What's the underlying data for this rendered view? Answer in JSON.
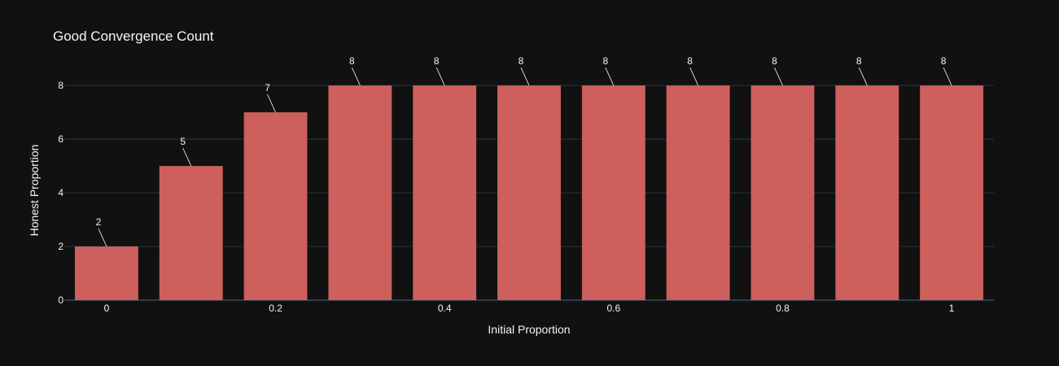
{
  "chart_data": {
    "type": "bar",
    "title": "Good Convergence Count",
    "xlabel": "Initial Proportion",
    "ylabel": "Honest Proportion",
    "x": [
      0,
      0.1,
      0.2,
      0.3,
      0.4,
      0.5,
      0.6,
      0.7,
      0.8,
      0.9,
      1
    ],
    "values": [
      2,
      5,
      7,
      8,
      8,
      8,
      8,
      8,
      8,
      8,
      8
    ],
    "data_labels": [
      "2",
      "5",
      "7",
      "8",
      "8",
      "8",
      "8",
      "8",
      "8",
      "8",
      "8"
    ],
    "xticks": [
      "0",
      "0.2",
      "0.4",
      "0.6",
      "0.8",
      "1"
    ],
    "xtick_values": [
      0,
      0.2,
      0.4,
      0.6,
      0.8,
      1
    ],
    "yticks": [
      "0",
      "2",
      "4",
      "6",
      "8"
    ],
    "ytick_values": [
      0,
      2,
      4,
      6,
      8
    ],
    "xlim": [
      -0.05,
      1.05
    ],
    "ylim": [
      0,
      8.7
    ],
    "grid": true,
    "legend": "none",
    "colors": {
      "background": "#111111",
      "bar": "#cd5f5d",
      "grid": "#283442",
      "zero_line": "#506784",
      "text": "#f2f5fa"
    }
  }
}
